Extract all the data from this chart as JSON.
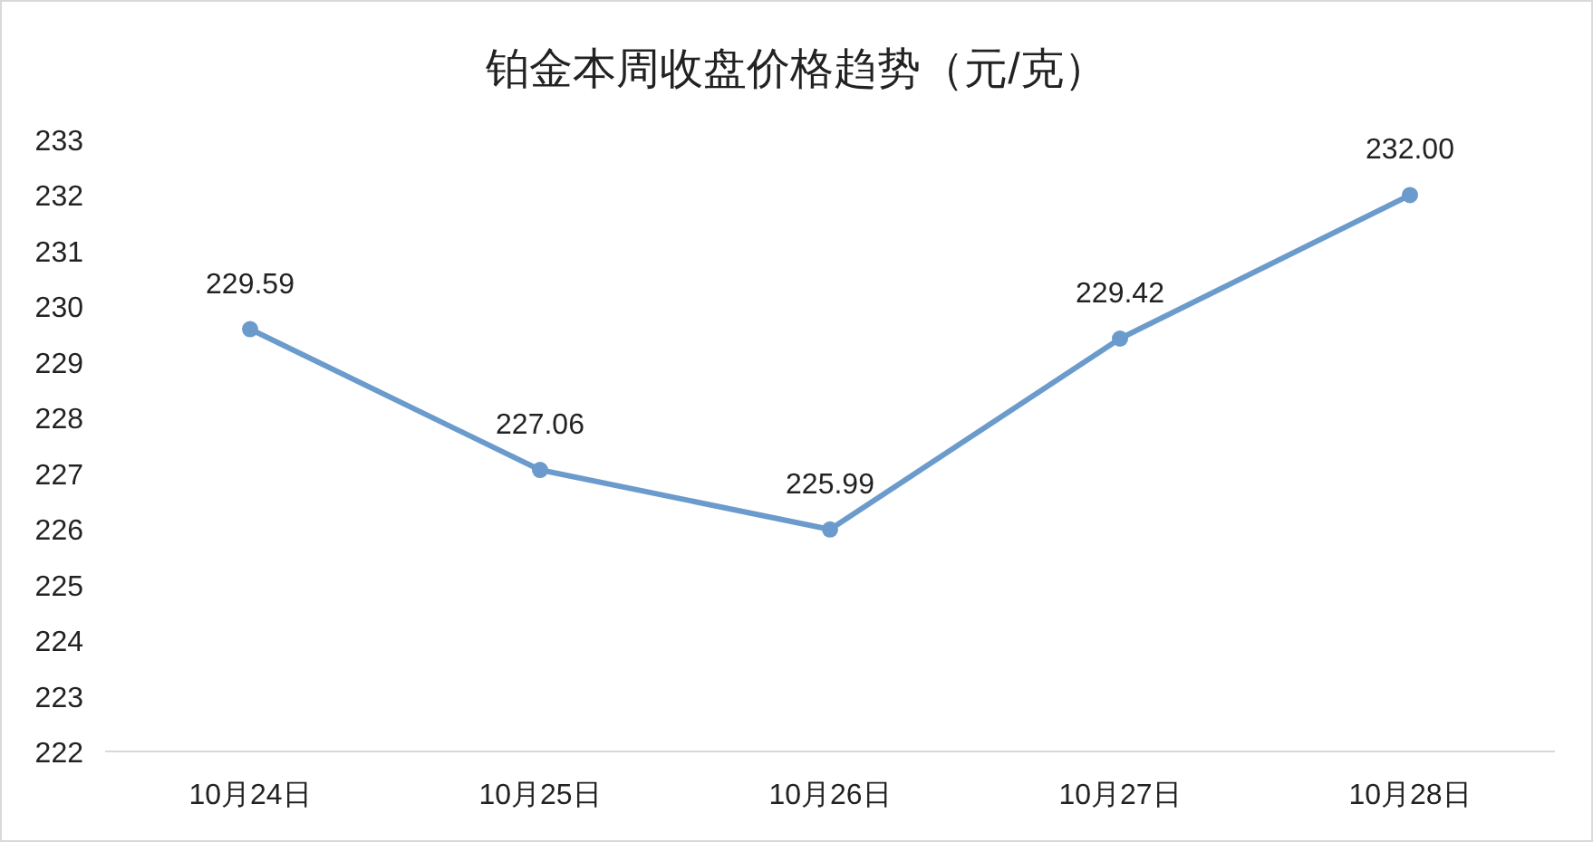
{
  "chart_data": {
    "type": "line",
    "title": "铂金本周收盘价格趋势（元/克）",
    "categories": [
      "10月24日",
      "10月25日",
      "10月26日",
      "10月27日",
      "10月28日"
    ],
    "values": [
      229.59,
      227.06,
      225.99,
      229.42,
      232.0
    ],
    "value_labels": [
      "229.59",
      "227.06",
      "225.99",
      "229.42",
      "232.00"
    ],
    "color": "#6a9bcc",
    "marker": "circle",
    "grid": false,
    "ylim": [
      222,
      233
    ],
    "yticks": [
      222,
      223,
      224,
      225,
      226,
      227,
      228,
      229,
      230,
      231,
      232,
      233
    ]
  }
}
